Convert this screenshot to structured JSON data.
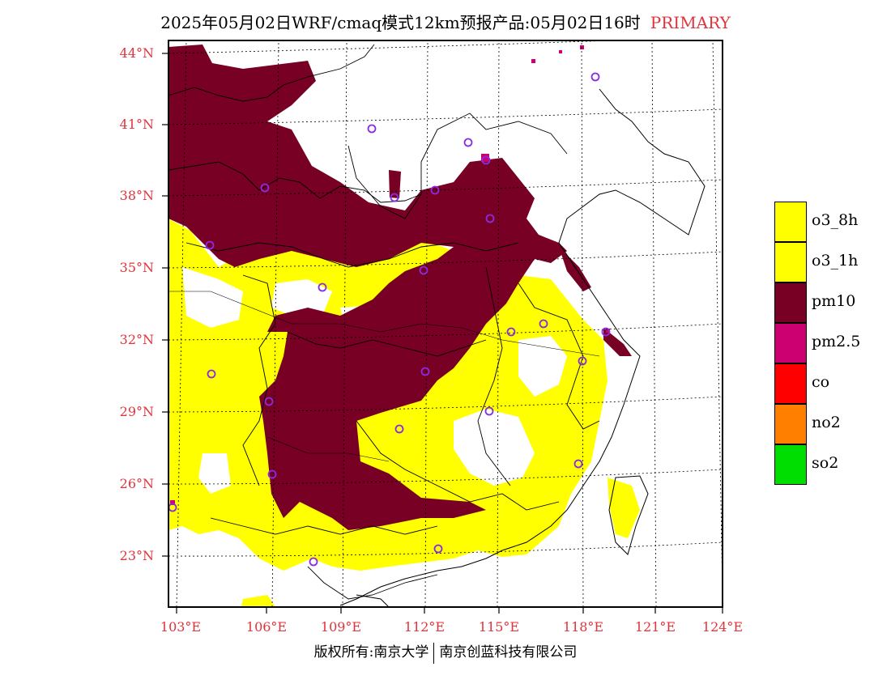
{
  "header": {
    "title": "2025年05月02日WRF/cmaq模式12km预报产品:05月02日16时",
    "tag": "PRIMARY"
  },
  "map": {
    "lat_labels": [
      "44°N",
      "41°N",
      "38°N",
      "35°N",
      "32°N",
      "29°N",
      "26°N",
      "23°N"
    ],
    "lon_labels": [
      "103°E",
      "106°E",
      "109°E",
      "112°E",
      "115°E",
      "118°E",
      "121°E",
      "124°E"
    ],
    "station_marker_icon": "circle-icon"
  },
  "legend": {
    "items": [
      {
        "label": "o3_8h",
        "color": "#ffff00"
      },
      {
        "label": "o3_1h",
        "color": "#ffff00"
      },
      {
        "label": "pm10",
        "color": "#780024"
      },
      {
        "label": "pm2.5",
        "color": "#cc0070"
      },
      {
        "label": "co",
        "color": "#ff0000"
      },
      {
        "label": "no2",
        "color": "#ff8000"
      },
      {
        "label": "so2",
        "color": "#00dd00"
      }
    ]
  },
  "footer": {
    "left": "版权所有:南京大学",
    "right": "南京创蓝科技有限公司"
  }
}
